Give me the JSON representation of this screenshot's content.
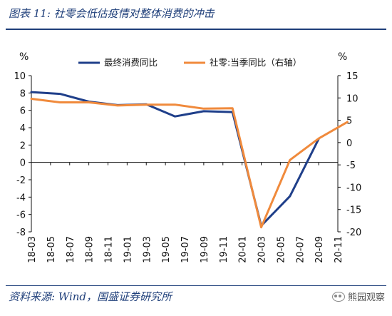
{
  "figure": {
    "title": "图表 11:  社零会低估疫情对整体消费的冲击",
    "source": "资料来源:  Wind，国盛证券研究所",
    "watermark": "熊园观察"
  },
  "colors": {
    "title": "#1f3f7a",
    "series1": "#1f3f8a",
    "series2": "#f08a3c",
    "axis": "#111111"
  },
  "chart_data": {
    "type": "line",
    "x": [
      "18-03",
      "18-05",
      "18-07",
      "18-09",
      "18-11",
      "19-01",
      "19-03",
      "19-05",
      "19-07",
      "19-09",
      "19-11",
      "20-01",
      "20-03",
      "20-05",
      "20-07",
      "20-09",
      "20-11"
    ],
    "x_tick_labels": [
      "18-03",
      "18-05",
      "18-07",
      "18-09",
      "18-11",
      "19-01",
      "19-03",
      "19-05",
      "19-07",
      "19-09",
      "19-11",
      "20-01",
      "20-03",
      "20-05",
      "20-07",
      "20-09",
      "20-11"
    ],
    "y_left": {
      "unit": "%",
      "range": [
        -8,
        10
      ],
      "ticks": [
        -8,
        -6,
        -4,
        -2,
        0,
        2,
        4,
        6,
        8,
        10
      ]
    },
    "y_right": {
      "unit": "%",
      "range": [
        -20,
        15
      ],
      "ticks": [
        -20,
        -15,
        -10,
        -5,
        0,
        5,
        10,
        15
      ]
    },
    "legend_position": "top-right",
    "series": [
      {
        "name": "最终消费同比",
        "axis": "left",
        "color": "#1f3f8a",
        "points": [
          {
            "x": "18-03",
            "y": 8.1
          },
          {
            "x": "18-06",
            "y": 7.9
          },
          {
            "x": "18-09",
            "y": 7.0
          },
          {
            "x": "18-12",
            "y": 6.6
          },
          {
            "x": "19-03",
            "y": 6.7
          },
          {
            "x": "19-06",
            "y": 5.3
          },
          {
            "x": "19-09",
            "y": 5.9
          },
          {
            "x": "19-12",
            "y": 5.8
          },
          {
            "x": "20-03",
            "y": -7.3
          },
          {
            "x": "20-06",
            "y": -3.9
          },
          {
            "x": "20-09",
            "y": 2.7
          }
        ]
      },
      {
        "name": "社零:当季同比（右轴）",
        "axis": "right",
        "color": "#f08a3c",
        "points": [
          {
            "x": "18-03",
            "y": 9.8
          },
          {
            "x": "18-06",
            "y": 9.0
          },
          {
            "x": "18-09",
            "y": 9.0
          },
          {
            "x": "18-12",
            "y": 8.3
          },
          {
            "x": "19-03",
            "y": 8.5
          },
          {
            "x": "19-06",
            "y": 8.5
          },
          {
            "x": "19-09",
            "y": 7.6
          },
          {
            "x": "19-12",
            "y": 7.7
          },
          {
            "x": "20-03",
            "y": -19.0
          },
          {
            "x": "20-06",
            "y": -3.9
          },
          {
            "x": "20-09",
            "y": 0.9
          },
          {
            "x": "20-12",
            "y": 4.6
          }
        ]
      }
    ]
  }
}
